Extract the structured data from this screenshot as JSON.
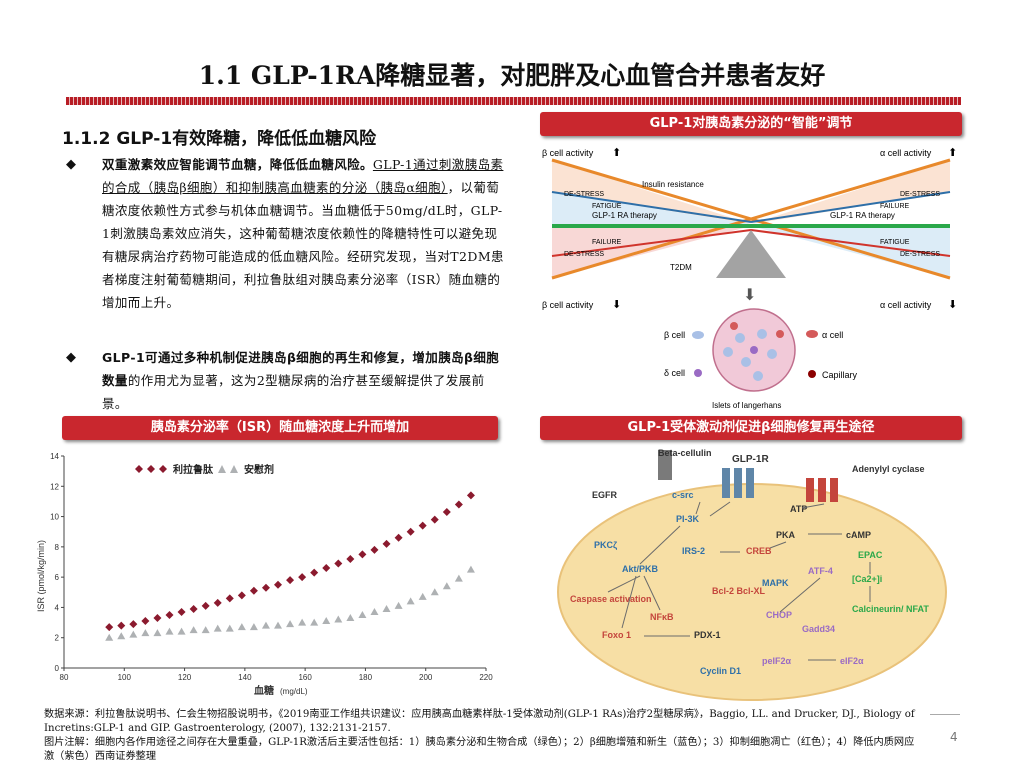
{
  "page": {
    "title": "1.1 GLP-1RA降糖显著，对肥胖及心血管合并患者友好",
    "subtitle": "1.1.2 GLP-1有效降糖，降低低血糖风险",
    "page_number": "4"
  },
  "bullets": [
    {
      "marker": "◆",
      "bold": "双重激素效应智能调节血糖，降低低血糖风险。",
      "underlined": "GLP-1通过刺激胰岛素的合成（胰岛β细胞）和抑制胰高血糖素的分泌（胰岛α细胞）",
      "rest": "，以葡萄糖浓度依赖性方式参与机体血糖调节。当血糖低于50mg/dL时，GLP-1刺激胰岛素效应消失，这种葡萄糖浓度依赖性的降糖特性可以避免现有糖尿病治疗药物可能造成的低血糖风险。经研究发现，当对T2DM患者梯度注射葡萄糖期间，利拉鲁肽组对胰岛素分泌率（ISR）随血糖的增加而上升。"
    },
    {
      "marker": "◆",
      "bold": "GLP-1可通过多种机制促进胰岛β细胞的再生和修复，增加胰岛β细胞数量",
      "rest": "的作用尤为显著，这为2型糖尿病的治疗甚至缓解提供了发展前景。"
    }
  ],
  "banners": {
    "isr": "胰岛素分泌率（ISR）随血糖浓度上升而增加",
    "smart": "GLP-1对胰岛素分泌的“智能”调节",
    "repair": "GLP-1受体激动剂促进β细胞修复再生途径"
  },
  "diagram_top": {
    "beta_activity": "β cell activity",
    "alpha_activity": "α cell activity",
    "insulin_resistance": "Insulin resistance",
    "destress": "DE-STRESS",
    "fatigue": "FATIGUE",
    "failure": "FAILURE",
    "therapy": "GLP-1 RA therapy",
    "t2dm": "T2DM",
    "beta_cell": "β cell",
    "alpha_cell": "α cell",
    "delta_cell": "δ cell",
    "capillary": "Capillary",
    "islets": "Islets of langerhans"
  },
  "pathway": {
    "nodes": [
      "Beta-cellulin",
      "GLP-1R",
      "EGFR",
      "c-src",
      "Adenylyl cyclase",
      "PI-3K",
      "ATP",
      "PKA",
      "cAMP",
      "PKCζ",
      "IRS-2",
      "CREB",
      "EPAC",
      "Akt/PKB",
      "MAPK",
      "ATF-4",
      "[Ca2+]i",
      "Bcl-2 Bcl-XL",
      "Caspase activation",
      "NFκB",
      "CHOP",
      "Calcineurin/ NFAT",
      "Foxo 1",
      "PDX-1",
      "Gadd34",
      "peIF2α",
      "eIF2α",
      "Cyclin D1"
    ]
  },
  "chart_data": {
    "type": "scatter",
    "xlabel": "血糖",
    "xlabel_unit": "(mg/dL)",
    "ylabel": "ISR (pmol/kg/min)",
    "xlim": [
      80,
      220
    ],
    "ylim": [
      0,
      14
    ],
    "xticks": [
      80,
      100,
      120,
      140,
      160,
      180,
      200,
      220
    ],
    "yticks": [
      0,
      2,
      4,
      6,
      8,
      10,
      12,
      14
    ],
    "series": [
      {
        "name": "利拉鲁肽",
        "color": "#8b1a2e",
        "marker": "diamond",
        "x": [
          95,
          99,
          103,
          107,
          111,
          115,
          119,
          123,
          127,
          131,
          135,
          139,
          143,
          147,
          151,
          155,
          159,
          163,
          167,
          171,
          175,
          179,
          183,
          187,
          191,
          195,
          199,
          203,
          207,
          211,
          215
        ],
        "y": [
          2.7,
          2.8,
          2.9,
          3.1,
          3.3,
          3.5,
          3.7,
          3.9,
          4.1,
          4.3,
          4.6,
          4.8,
          5.1,
          5.3,
          5.5,
          5.8,
          6.0,
          6.3,
          6.6,
          6.9,
          7.2,
          7.5,
          7.8,
          8.2,
          8.6,
          9.0,
          9.4,
          9.8,
          10.3,
          10.8,
          11.4
        ]
      },
      {
        "name": "安慰剂",
        "color": "#aeb1b3",
        "marker": "triangle",
        "x": [
          95,
          99,
          103,
          107,
          111,
          115,
          119,
          123,
          127,
          131,
          135,
          139,
          143,
          147,
          151,
          155,
          159,
          163,
          167,
          171,
          175,
          179,
          183,
          187,
          191,
          195,
          199,
          203,
          207,
          211,
          215
        ],
        "y": [
          2.0,
          2.1,
          2.2,
          2.3,
          2.3,
          2.4,
          2.4,
          2.5,
          2.5,
          2.6,
          2.6,
          2.7,
          2.7,
          2.8,
          2.8,
          2.9,
          3.0,
          3.0,
          3.1,
          3.2,
          3.3,
          3.5,
          3.7,
          3.9,
          4.1,
          4.4,
          4.7,
          5.0,
          5.4,
          5.9,
          6.5
        ]
      }
    ]
  },
  "footnotes": {
    "source": "数据来源：利拉鲁肽说明书、仁会生物招股说明书，《2019南亚工作组共识建议：应用胰高血糖素样肽-1受体激动剂(GLP-1 RAs)治疗2型糖尿病》，Baggio, LL. and Drucker, DJ., Biology of Incretins:GLP-1 and GIP. Gastroenterology, (2007), 132:2131-2157.",
    "note": "图片注解：细胞内各作用途径之间存在大量重叠，GLP-1R激活后主要活性包括：1）胰岛素分泌和生物合成（绿色）；2）β细胞增殖和新生（蓝色）；3）抑制细胞凋亡（红色）；4）降低内质网应激（紫色）西南证券整理"
  }
}
